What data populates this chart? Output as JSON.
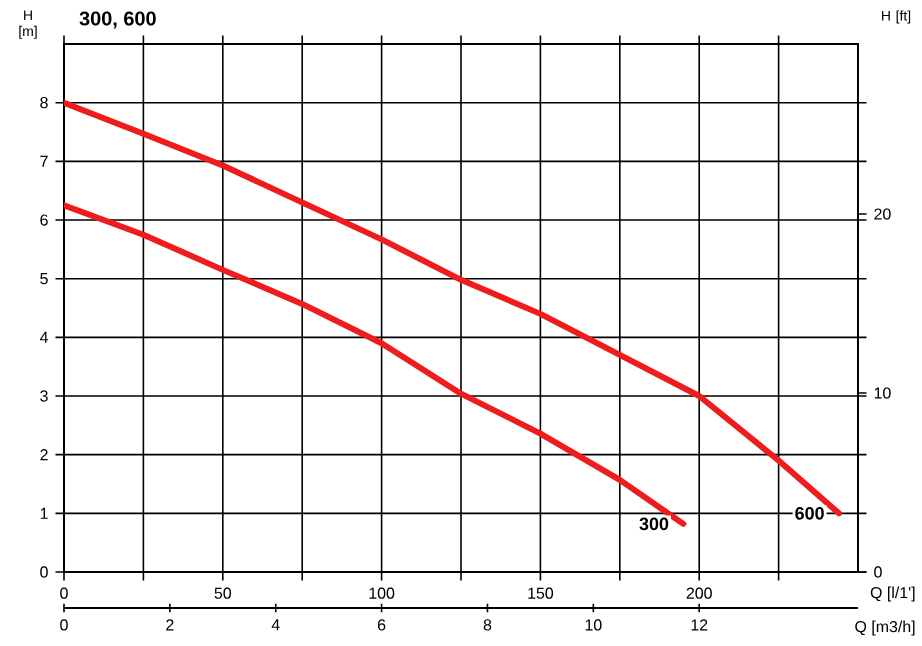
{
  "chart_data": {
    "type": "line",
    "title": "300, 600",
    "xlabel": "Q [l/1']",
    "x2label": "Q [m3/h]",
    "ylabel": "H [m]",
    "y2label": "H [ft]",
    "xlim": [
      0,
      250
    ],
    "xticks": [
      0,
      {
        "value": 25,
        "label": null
      },
      50,
      {
        "value": 75,
        "label": null
      },
      100,
      {
        "value": 125,
        "label": null
      },
      150,
      {
        "value": 175,
        "label": null
      },
      200,
      {
        "value": 225,
        "label": null
      }
    ],
    "x2lim": [
      0,
      15
    ],
    "x2ticks": [
      0,
      2,
      4,
      6,
      8,
      10,
      12
    ],
    "ylim": [
      0,
      9
    ],
    "yticks": [
      0,
      1,
      2,
      3,
      4,
      5,
      6,
      7,
      8
    ],
    "y2lim": [
      0,
      29.5
    ],
    "y2ticks": [
      0,
      10,
      20
    ],
    "grid": true,
    "series": [
      {
        "color": "#ee1c1c",
        "x": [
          0,
          25,
          50,
          75,
          100,
          125,
          150,
          175,
          200,
          225,
          244
        ],
        "values": [
          8.0,
          7.47,
          6.93,
          6.3,
          5.67,
          4.98,
          4.4,
          3.7,
          3.0,
          1.9,
          1.0
        ]
      },
      {
        "color": "#ee1c1c",
        "x": [
          0,
          25,
          50,
          75,
          100,
          125,
          150,
          175,
          195
        ],
        "values": [
          6.25,
          5.75,
          5.15,
          4.57,
          3.9,
          3.04,
          2.36,
          1.57,
          0.82
        ]
      }
    ],
    "annotations": [
      {
        "text": "300",
        "x": 195,
        "y": 0.82
      },
      {
        "text": "600",
        "x": 244,
        "y": 1.0
      }
    ]
  }
}
